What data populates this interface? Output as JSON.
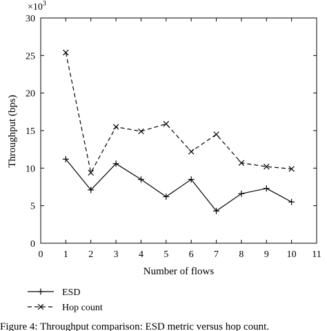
{
  "chart_data": {
    "type": "line",
    "title": "",
    "xlabel": "Number of flows",
    "ylabel": "Throughput (bps)",
    "y_multiplier": "×10",
    "y_multiplier_exponent": "3",
    "xlim": [
      0,
      11
    ],
    "ylim": [
      0,
      30
    ],
    "x_ticks": [
      0,
      1,
      2,
      3,
      4,
      5,
      6,
      7,
      8,
      9,
      10,
      11
    ],
    "y_ticks": [
      0,
      5,
      10,
      15,
      20,
      25,
      30
    ],
    "grid": false,
    "legend_position": "bottom-left-outside",
    "x": [
      1,
      2,
      3,
      4,
      5,
      6,
      7,
      8,
      9,
      10
    ],
    "series": [
      {
        "name": "ESD",
        "values": [
          11.2,
          7.1,
          10.6,
          8.5,
          6.2,
          8.5,
          4.3,
          6.6,
          7.3,
          5.5
        ],
        "line_style": "solid",
        "marker": "+"
      },
      {
        "name": "Hop count",
        "values": [
          25.4,
          9.4,
          15.5,
          14.9,
          15.9,
          12.2,
          14.5,
          10.7,
          10.2,
          9.9
        ],
        "line_style": "dashed",
        "marker": "x"
      }
    ],
    "caption": "Figure 4: Throughput comparison: ESD metric versus hop count."
  }
}
